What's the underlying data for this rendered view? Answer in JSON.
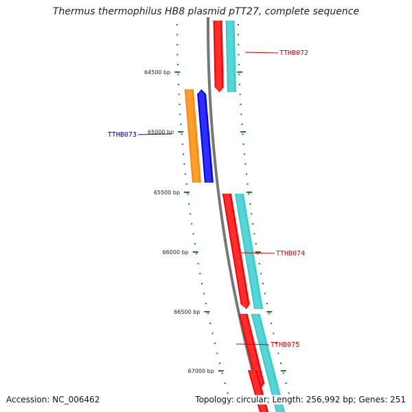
{
  "title": "Thermus thermophilus HB8 plasmid pTT27, complete sequence",
  "footer": {
    "accession": "Accession: NC_006462",
    "topology": "Topology: circular; Length: 256,992 bp; Genes: 251"
  },
  "colors": {
    "backbone": "#777777",
    "tick": "#1a7a1a",
    "forward_cds": "#ff0000",
    "forward_gene": "#33cccc",
    "reverse_cds": "#0000ff",
    "reverse_gene": "#ff8800",
    "forward_label": "#cc0000",
    "reverse_label": "#000099"
  },
  "ticks": [
    "64500 bp",
    "65000 bp",
    "65500 bp",
    "66000 bp",
    "66500 bp",
    "67000 bp"
  ],
  "genes": [
    {
      "name": "TTHB072",
      "strand": "forward"
    },
    {
      "name": "TTHB073",
      "strand": "reverse"
    },
    {
      "name": "TTHB074",
      "strand": "forward"
    },
    {
      "name": "TTHB075",
      "strand": "forward"
    }
  ]
}
